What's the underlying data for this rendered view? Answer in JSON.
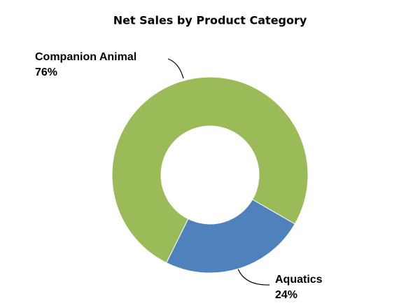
{
  "chart_data": {
    "type": "donut",
    "title": "Net Sales by Product Category",
    "categories": [
      "Companion Animal",
      "Aquatics"
    ],
    "values": [
      76,
      24
    ],
    "value_labels": [
      "76%",
      "24%"
    ],
    "colors": [
      "#9bbb59",
      "#4f81bd"
    ]
  }
}
